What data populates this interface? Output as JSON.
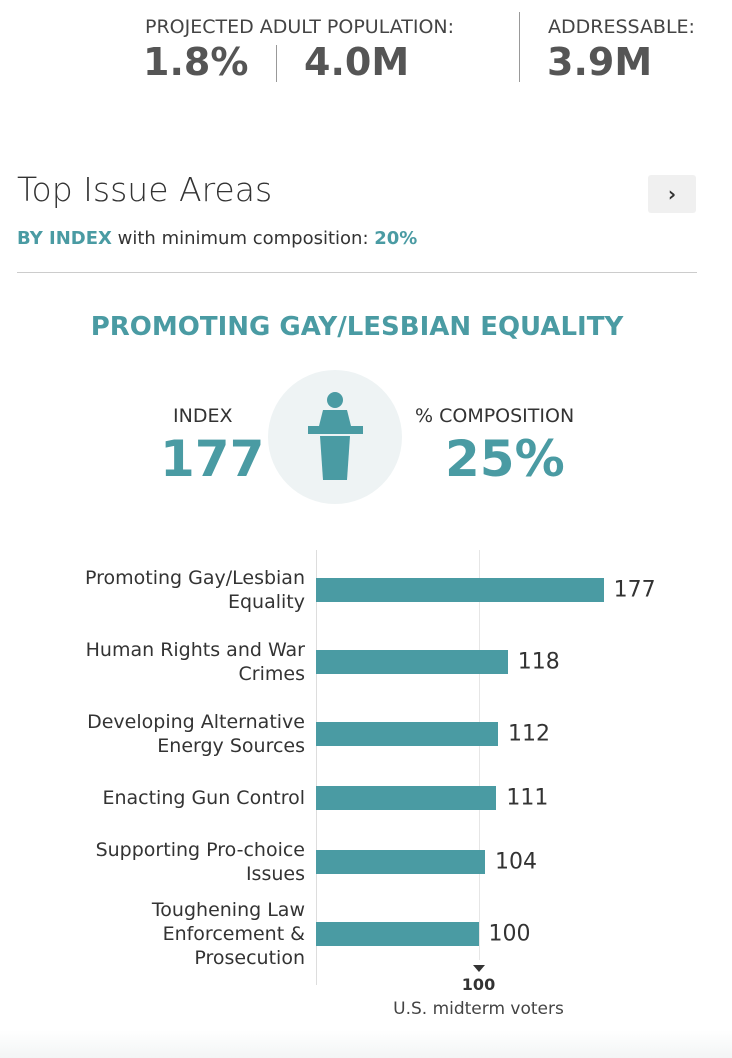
{
  "header": {
    "projected_label": "PROJECTED ADULT POPULATION:",
    "projected_percent": "1.8%",
    "projected_count": "4.0M",
    "addressable_label": "ADDRESSABLE:",
    "addressable_count": "3.9M"
  },
  "section": {
    "title": "Top Issue Areas",
    "sort_label": "BY INDEX",
    "filter_label": "with minimum composition:",
    "filter_value": "20%"
  },
  "highlight": {
    "title": "PROMOTING GAY/LESBIAN EQUALITY",
    "index_label": "INDEX",
    "index_value": "177",
    "composition_label": "% COMPOSITION",
    "composition_value": "25%"
  },
  "chart_data": {
    "type": "bar",
    "orientation": "horizontal",
    "categories": [
      "Promoting Gay/Lesbian Equality",
      "Human Rights and War Crimes",
      "Developing Alternative Energy Sources",
      "Enacting Gun Control",
      "Supporting Pro-choice Issues",
      "Toughening Law Enforcement & Prosecution"
    ],
    "values": [
      177,
      118,
      112,
      111,
      104,
      100
    ],
    "color": "#4a9ba3",
    "xlim": [
      0,
      200
    ],
    "xticks": [
      100
    ],
    "reference_label": "U.S. midterm voters"
  }
}
